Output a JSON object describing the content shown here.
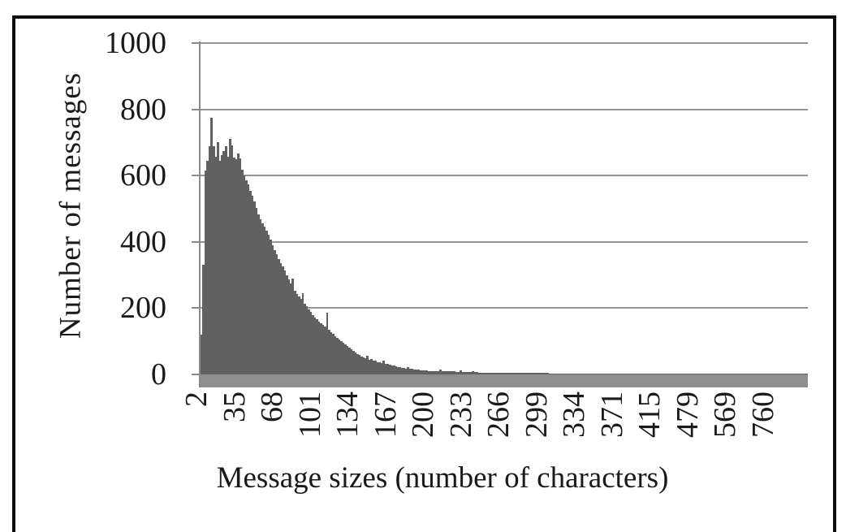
{
  "figure": {
    "background": "#ffffff",
    "frame_color": "#0d0d0d"
  },
  "chart_data": {
    "type": "bar",
    "title": "",
    "xlabel": "Message sizes (number of characters)",
    "ylabel": "Number of messages",
    "x_tick_labels": [
      "2",
      "35",
      "68",
      "101",
      "134",
      "167",
      "200",
      "233",
      "266",
      "299",
      "334",
      "371",
      "415",
      "479",
      "569",
      "760"
    ],
    "y_ticks": [
      1000,
      800,
      600,
      400,
      200,
      0
    ],
    "y_tick_labels": [
      "1000",
      "800",
      "600",
      "400",
      "200",
      "0"
    ],
    "ylim": [
      0,
      1000
    ],
    "grid": "horizontal",
    "legend": "none",
    "bar_color": "#616161",
    "axis_band_color": "#8e8e8e",
    "gridline_color": "#949494",
    "text_color": "#1a1a1a",
    "values": [
      120,
      330,
      615,
      645,
      690,
      775,
      688,
      658,
      702,
      645,
      662,
      673,
      690,
      658,
      712,
      692,
      655,
      649,
      668,
      651,
      617,
      601,
      586,
      573,
      554,
      539,
      521,
      502,
      483,
      468,
      455,
      447,
      435,
      421,
      406,
      389,
      376,
      362,
      349,
      337,
      325,
      313,
      300,
      288,
      275,
      290,
      252,
      243,
      235,
      228,
      246,
      213,
      205,
      197,
      188,
      180,
      172,
      166,
      160,
      155,
      150,
      145,
      187,
      134,
      128,
      122,
      115,
      110,
      105,
      100,
      95,
      90,
      85,
      80,
      75,
      71,
      66,
      62,
      58,
      55,
      52,
      48,
      56,
      44,
      46,
      42,
      41,
      38,
      37,
      34,
      41,
      31,
      31,
      29,
      28,
      26,
      24,
      23,
      22,
      20,
      19,
      18,
      23,
      17,
      17,
      16,
      15,
      14,
      13,
      13,
      12,
      12,
      11,
      11,
      11,
      11,
      10,
      10,
      14,
      10,
      10,
      9,
      9,
      9,
      9,
      9,
      8,
      8,
      12,
      8,
      8,
      7,
      7,
      7,
      10,
      7,
      7,
      6,
      6,
      6,
      6,
      6,
      6,
      6,
      6,
      6,
      5,
      5,
      5,
      5,
      5,
      5,
      5,
      5,
      5,
      5,
      4,
      4,
      4,
      4,
      4,
      4,
      4,
      4,
      4,
      4,
      4,
      4,
      4,
      4,
      4,
      4,
      3,
      3,
      3,
      3,
      3,
      3,
      3,
      3,
      3,
      3,
      3,
      3,
      3,
      3,
      3,
      3,
      3,
      3,
      3,
      3,
      3,
      3,
      3,
      3,
      3,
      3,
      3,
      3,
      3,
      3,
      2,
      2,
      2,
      2,
      2,
      2,
      2,
      2,
      2,
      2,
      2,
      2,
      2,
      2,
      2,
      2,
      2,
      2,
      2,
      2,
      2,
      2,
      2,
      2,
      2,
      2,
      2,
      2,
      2,
      2,
      2,
      2,
      2,
      2,
      2,
      2,
      2,
      2,
      2,
      2,
      2,
      2,
      2,
      2,
      2,
      2,
      2,
      2,
      2,
      2,
      2,
      2,
      2,
      2,
      2,
      2,
      2,
      2,
      2,
      2,
      2,
      2,
      2,
      2,
      2,
      2,
      2,
      2,
      2,
      2,
      2,
      2,
      2,
      2,
      2,
      2,
      2,
      2,
      2,
      2,
      2,
      2,
      2,
      2,
      2,
      2,
      2,
      2,
      2,
      2,
      2,
      2,
      2,
      2,
      2,
      2,
      2,
      2
    ]
  }
}
